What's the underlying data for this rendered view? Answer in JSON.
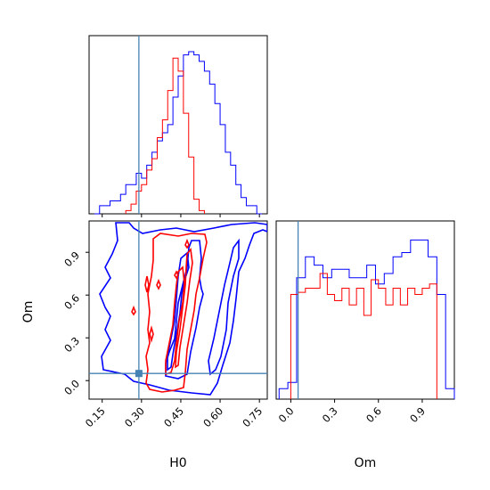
{
  "chart_data": {
    "type": "corner",
    "parameters": [
      "H0",
      "Om"
    ],
    "truths": {
      "H0": 0.29,
      "Om": 0.05
    },
    "truth_color": "#4682b4",
    "series_colors": {
      "blue": "#0000ff",
      "red": "#ff0000"
    },
    "panels": {
      "hist_H0": {
        "xlim": [
          0.1,
          0.78
        ],
        "bin_edges": [
          0.12,
          0.14,
          0.16,
          0.18,
          0.2,
          0.22,
          0.24,
          0.26,
          0.28,
          0.3,
          0.32,
          0.34,
          0.36,
          0.38,
          0.4,
          0.42,
          0.44,
          0.46,
          0.48,
          0.5,
          0.52,
          0.54,
          0.56,
          0.58,
          0.6,
          0.62,
          0.64,
          0.66,
          0.68,
          0.7,
          0.72,
          0.74,
          0.76
        ],
        "series": [
          {
            "color": "blue",
            "values": [
              0,
              0.05,
              0.05,
              0.08,
              0.08,
              0.12,
              0.18,
              0.18,
              0.25,
              0.22,
              0.3,
              0.38,
              0.45,
              0.5,
              0.55,
              0.72,
              0.85,
              0.98,
              1.0,
              0.98,
              0.94,
              0.88,
              0.8,
              0.68,
              0.55,
              0.38,
              0.3,
              0.18,
              0.1,
              0.05,
              0.05,
              0
            ]
          },
          {
            "color": "red",
            "bin_edges": [
              0.24,
              0.26,
              0.28,
              0.3,
              0.32,
              0.34,
              0.36,
              0.38,
              0.4,
              0.42,
              0.44,
              0.46,
              0.48,
              0.5,
              0.52,
              0.54
            ],
            "values": [
              0.02,
              0.06,
              0.14,
              0.18,
              0.27,
              0.34,
              0.47,
              0.58,
              0.76,
              0.96,
              0.88,
              0.62,
              0.35,
              0.09,
              0.02
            ]
          }
        ]
      },
      "contour": {
        "xlim": [
          0.1,
          0.78
        ],
        "ylim": [
          -0.13,
          1.12
        ],
        "xticks": [
          "0.15",
          "0.30",
          "0.45",
          "0.60",
          "0.75"
        ],
        "xtick_values": [
          0.15,
          0.3,
          0.45,
          0.6,
          0.75
        ],
        "yticks": [
          "0.0",
          "0.3",
          "0.6",
          "0.9"
        ],
        "ytick_values": [
          0.0,
          0.3,
          0.6,
          0.9
        ],
        "xlabel": "H0",
        "ylabel": "Om"
      },
      "hist_Om": {
        "xlim": [
          -0.1,
          1.12
        ],
        "xticks": [
          "0.0",
          "0.3",
          "0.6",
          "0.9"
        ],
        "xtick_values": [
          0.0,
          0.3,
          0.6,
          0.9
        ],
        "xlabel": "Om",
        "bin_edges": [
          -0.08,
          -0.02,
          0.04,
          0.1,
          0.16,
          0.22,
          0.28,
          0.34,
          0.4,
          0.46,
          0.52,
          0.58,
          0.64,
          0.7,
          0.76,
          0.82,
          0.88,
          0.94,
          1.0,
          1.06,
          1.12
        ],
        "series": [
          {
            "color": "blue",
            "values": [
              0.05,
              0.08,
              0.58,
              0.68,
              0.64,
              0.58,
              0.62,
              0.62,
              0.58,
              0.58,
              0.64,
              0.55,
              0.6,
              0.68,
              0.7,
              0.76,
              0.76,
              0.68,
              0.5,
              0.05
            ]
          },
          {
            "color": "red",
            "bin_edges": [
              0.0,
              0.05,
              0.1,
              0.15,
              0.2,
              0.25,
              0.3,
              0.35,
              0.4,
              0.45,
              0.5,
              0.55,
              0.6,
              0.65,
              0.7,
              0.75,
              0.8,
              0.85,
              0.9,
              0.95,
              1.0
            ],
            "values": [
              0.5,
              0.51,
              0.53,
              0.53,
              0.6,
              0.5,
              0.47,
              0.53,
              0.45,
              0.53,
              0.4,
              0.57,
              0.53,
              0.45,
              0.53,
              0.45,
              0.53,
              0.5,
              0.53,
              0.55
            ]
          }
        ]
      }
    }
  }
}
